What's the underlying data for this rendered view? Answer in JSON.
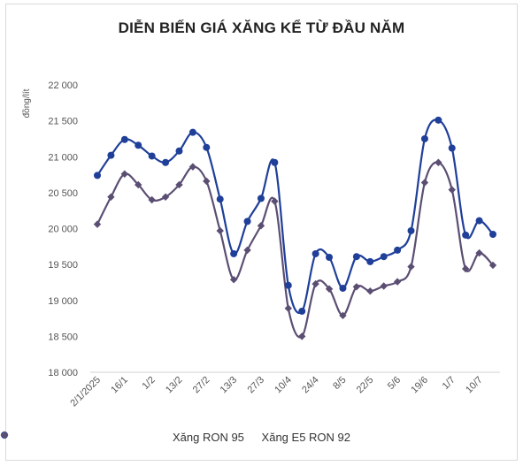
{
  "chart_data": {
    "type": "line",
    "title": "DIỄN BIẾN GIÁ XĂNG KỂ TỪ ĐẦU NĂM",
    "ylabel": "đồng/lít",
    "xlabel": "",
    "ylim": [
      18000,
      22000
    ],
    "yticks": [
      18000,
      18500,
      19000,
      19500,
      20000,
      20500,
      21000,
      21500,
      22000
    ],
    "ytick_labels": [
      "18 000",
      "18 500",
      "19 000",
      "19 500",
      "20 000",
      "20 500",
      "21 000",
      "21 500",
      "22 000"
    ],
    "x_tick_labels": [
      "2/1/2025",
      "16/1",
      "1/2",
      "13/2",
      "27/2",
      "13/3",
      "27/3",
      "10/4",
      "24/4",
      "8/5",
      "22/5",
      "5/6",
      "19/6",
      "1/7",
      "10/7"
    ],
    "x_tick_positions": [
      0,
      2,
      4,
      6,
      8,
      10,
      12,
      14,
      16,
      18,
      20,
      22,
      24,
      26,
      28
    ],
    "grid": false,
    "legend_position": "bottom",
    "series": [
      {
        "name": "Xăng RON 95",
        "color": "#1f3f99",
        "marker": "circle",
        "values": [
          20740,
          21020,
          21240,
          21160,
          21010,
          20920,
          21080,
          21340,
          21130,
          20410,
          19650,
          20100,
          20420,
          20920,
          19210,
          18850,
          19650,
          19600,
          19170,
          19610,
          19540,
          19610,
          19700,
          19970,
          21250,
          21510,
          21120,
          19910,
          20110,
          19920
        ]
      },
      {
        "name": "Xăng E5 RON 92",
        "color": "#5b4e73",
        "marker": "diamond",
        "values": [
          20060,
          20440,
          20760,
          20610,
          20400,
          20440,
          20610,
          20860,
          20660,
          19970,
          19290,
          19700,
          20040,
          20380,
          18890,
          18500,
          19230,
          19160,
          18790,
          19190,
          19130,
          19200,
          19260,
          19470,
          20640,
          20920,
          20540,
          19440,
          19660,
          19490
        ]
      }
    ]
  }
}
